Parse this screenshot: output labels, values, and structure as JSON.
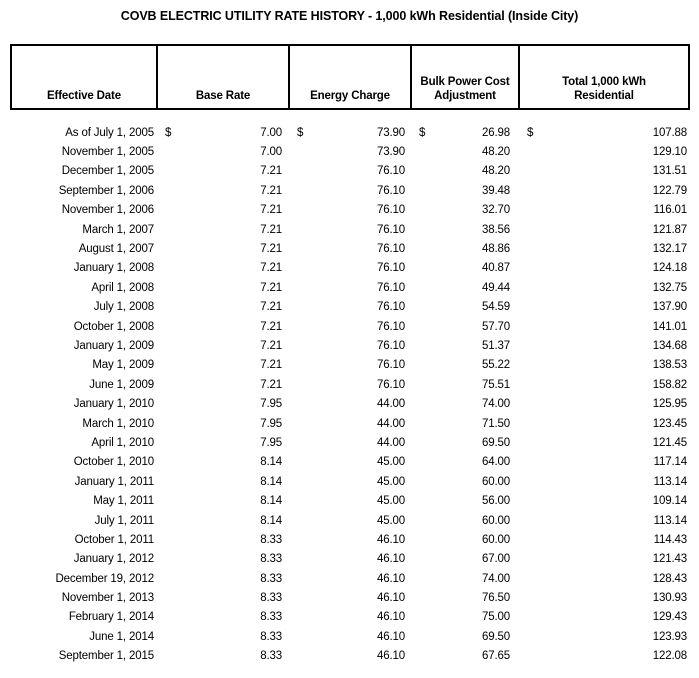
{
  "title": "COVB ELECTRIC UTILITY RATE HISTORY - 1,000 kWh Residential (Inside City)",
  "chart_data": {
    "type": "table",
    "title": "COVB ELECTRIC UTILITY RATE HISTORY - 1,000 kWh Residential (Inside City)",
    "currency_symbol": "$",
    "columns": [
      "Effective Date",
      "Base Rate",
      "Energy Charge",
      "Bulk Power Cost\nAdjustment",
      "Total 1,000 kWh\nResidential"
    ],
    "rows": [
      {
        "date": "As of July 1, 2005",
        "show_currency": true,
        "base_rate": "7.00",
        "energy_charge": "73.90",
        "bulk_power_cost_adjustment": "26.98",
        "total_residential": "107.88"
      },
      {
        "date": "November 1, 2005",
        "base_rate": "7.00",
        "energy_charge": "73.90",
        "bulk_power_cost_adjustment": "48.20",
        "total_residential": "129.10"
      },
      {
        "date": "December 1, 2005",
        "base_rate": "7.21",
        "energy_charge": "76.10",
        "bulk_power_cost_adjustment": "48.20",
        "total_residential": "131.51"
      },
      {
        "date": "September 1, 2006",
        "base_rate": "7.21",
        "energy_charge": "76.10",
        "bulk_power_cost_adjustment": "39.48",
        "total_residential": "122.79"
      },
      {
        "date": "November 1, 2006",
        "base_rate": "7.21",
        "energy_charge": "76.10",
        "bulk_power_cost_adjustment": "32.70",
        "total_residential": "116.01"
      },
      {
        "date": "March 1, 2007",
        "base_rate": "7.21",
        "energy_charge": "76.10",
        "bulk_power_cost_adjustment": "38.56",
        "total_residential": "121.87"
      },
      {
        "date": "August 1, 2007",
        "base_rate": "7.21",
        "energy_charge": "76.10",
        "bulk_power_cost_adjustment": "48.86",
        "total_residential": "132.17"
      },
      {
        "date": "January 1, 2008",
        "base_rate": "7.21",
        "energy_charge": "76.10",
        "bulk_power_cost_adjustment": "40.87",
        "total_residential": "124.18"
      },
      {
        "date": "April 1, 2008",
        "base_rate": "7.21",
        "energy_charge": "76.10",
        "bulk_power_cost_adjustment": "49.44",
        "total_residential": "132.75"
      },
      {
        "date": "July 1, 2008",
        "base_rate": "7.21",
        "energy_charge": "76.10",
        "bulk_power_cost_adjustment": "54.59",
        "total_residential": "137.90"
      },
      {
        "date": "October 1, 2008",
        "base_rate": "7.21",
        "energy_charge": "76.10",
        "bulk_power_cost_adjustment": "57.70",
        "total_residential": "141.01"
      },
      {
        "date": "January 1, 2009",
        "base_rate": "7.21",
        "energy_charge": "76.10",
        "bulk_power_cost_adjustment": "51.37",
        "total_residential": "134.68"
      },
      {
        "date": "May 1, 2009",
        "base_rate": "7.21",
        "energy_charge": "76.10",
        "bulk_power_cost_adjustment": "55.22",
        "total_residential": "138.53"
      },
      {
        "date": "June 1, 2009",
        "base_rate": "7.21",
        "energy_charge": "76.10",
        "bulk_power_cost_adjustment": "75.51",
        "total_residential": "158.82"
      },
      {
        "date": "January 1, 2010",
        "base_rate": "7.95",
        "energy_charge": "44.00",
        "bulk_power_cost_adjustment": "74.00",
        "total_residential": "125.95"
      },
      {
        "date": "March 1, 2010",
        "base_rate": "7.95",
        "energy_charge": "44.00",
        "bulk_power_cost_adjustment": "71.50",
        "total_residential": "123.45"
      },
      {
        "date": "April 1, 2010",
        "base_rate": "7.95",
        "energy_charge": "44.00",
        "bulk_power_cost_adjustment": "69.50",
        "total_residential": "121.45"
      },
      {
        "date": "October 1, 2010",
        "base_rate": "8.14",
        "energy_charge": "45.00",
        "bulk_power_cost_adjustment": "64.00",
        "total_residential": "117.14"
      },
      {
        "date": "January 1, 2011",
        "base_rate": "8.14",
        "energy_charge": "45.00",
        "bulk_power_cost_adjustment": "60.00",
        "total_residential": "113.14"
      },
      {
        "date": "May 1, 2011",
        "base_rate": "8.14",
        "energy_charge": "45.00",
        "bulk_power_cost_adjustment": "56.00",
        "total_residential": "109.14"
      },
      {
        "date": "July 1, 2011",
        "base_rate": "8.14",
        "energy_charge": "45.00",
        "bulk_power_cost_adjustment": "60.00",
        "total_residential": "113.14"
      },
      {
        "date": "October 1, 2011",
        "base_rate": "8.33",
        "energy_charge": "46.10",
        "bulk_power_cost_adjustment": "60.00",
        "total_residential": "114.43"
      },
      {
        "date": "January 1, 2012",
        "base_rate": "8.33",
        "energy_charge": "46.10",
        "bulk_power_cost_adjustment": "67.00",
        "total_residential": "121.43"
      },
      {
        "date": "December 19, 2012",
        "base_rate": "8.33",
        "energy_charge": "46.10",
        "bulk_power_cost_adjustment": "74.00",
        "total_residential": "128.43"
      },
      {
        "date": "November 1, 2013",
        "base_rate": "8.33",
        "energy_charge": "46.10",
        "bulk_power_cost_adjustment": "76.50",
        "total_residential": "130.93"
      },
      {
        "date": "February 1, 2014",
        "base_rate": "8.33",
        "energy_charge": "46.10",
        "bulk_power_cost_adjustment": "75.00",
        "total_residential": "129.43"
      },
      {
        "date": "June 1, 2014",
        "base_rate": "8.33",
        "energy_charge": "46.10",
        "bulk_power_cost_adjustment": "69.50",
        "total_residential": "123.93"
      },
      {
        "date": "September 1, 2015",
        "base_rate": "8.33",
        "energy_charge": "46.10",
        "bulk_power_cost_adjustment": "67.65",
        "total_residential": "122.08"
      }
    ]
  }
}
